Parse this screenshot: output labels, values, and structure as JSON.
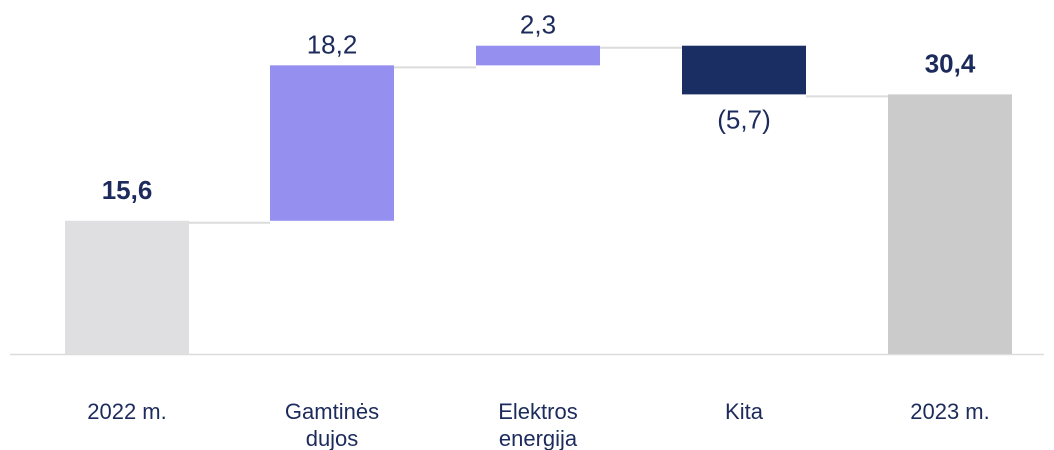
{
  "chart_data": {
    "type": "bar",
    "subtype": "waterfall",
    "title": "",
    "xlabel": "",
    "ylabel": "",
    "ylim": [
      0,
      33
    ],
    "grid": false,
    "legend": "none",
    "categories": [
      [
        "2022 m."
      ],
      [
        "Gamtinės",
        "dujos"
      ],
      [
        "Elektros",
        "energija"
      ],
      [
        "Kita"
      ],
      [
        "2023 m."
      ]
    ],
    "bars": [
      {
        "kind": "total",
        "start": 0,
        "end": 15.6,
        "label": "15,6",
        "color": "#dfdfe1",
        "label_color": "#1d2b5c",
        "bold": true
      },
      {
        "kind": "increase",
        "start": 15.6,
        "end": 33.8,
        "label": "18,2",
        "color": "#9590f0",
        "label_color": "#1d2b5c",
        "bold": false
      },
      {
        "kind": "increase",
        "start": 33.8,
        "end": 36.1,
        "label": "2,3",
        "color": "#9590f0",
        "label_color": "#1d2b5c",
        "bold": false
      },
      {
        "kind": "decrease",
        "start": 36.1,
        "end": 30.4,
        "label": "(5,7)",
        "color": "#1a2e63",
        "label_color": "#1d2b5c",
        "bold": false
      },
      {
        "kind": "total",
        "start": 0,
        "end": 30.4,
        "label": "30,4",
        "color": "#cbcbcb",
        "label_color": "#1d2b5c",
        "bold": true
      }
    ],
    "connector_color": "#dcdcdc",
    "axis_color": "#dcdcdc",
    "text_color": "#1d2b5c"
  }
}
